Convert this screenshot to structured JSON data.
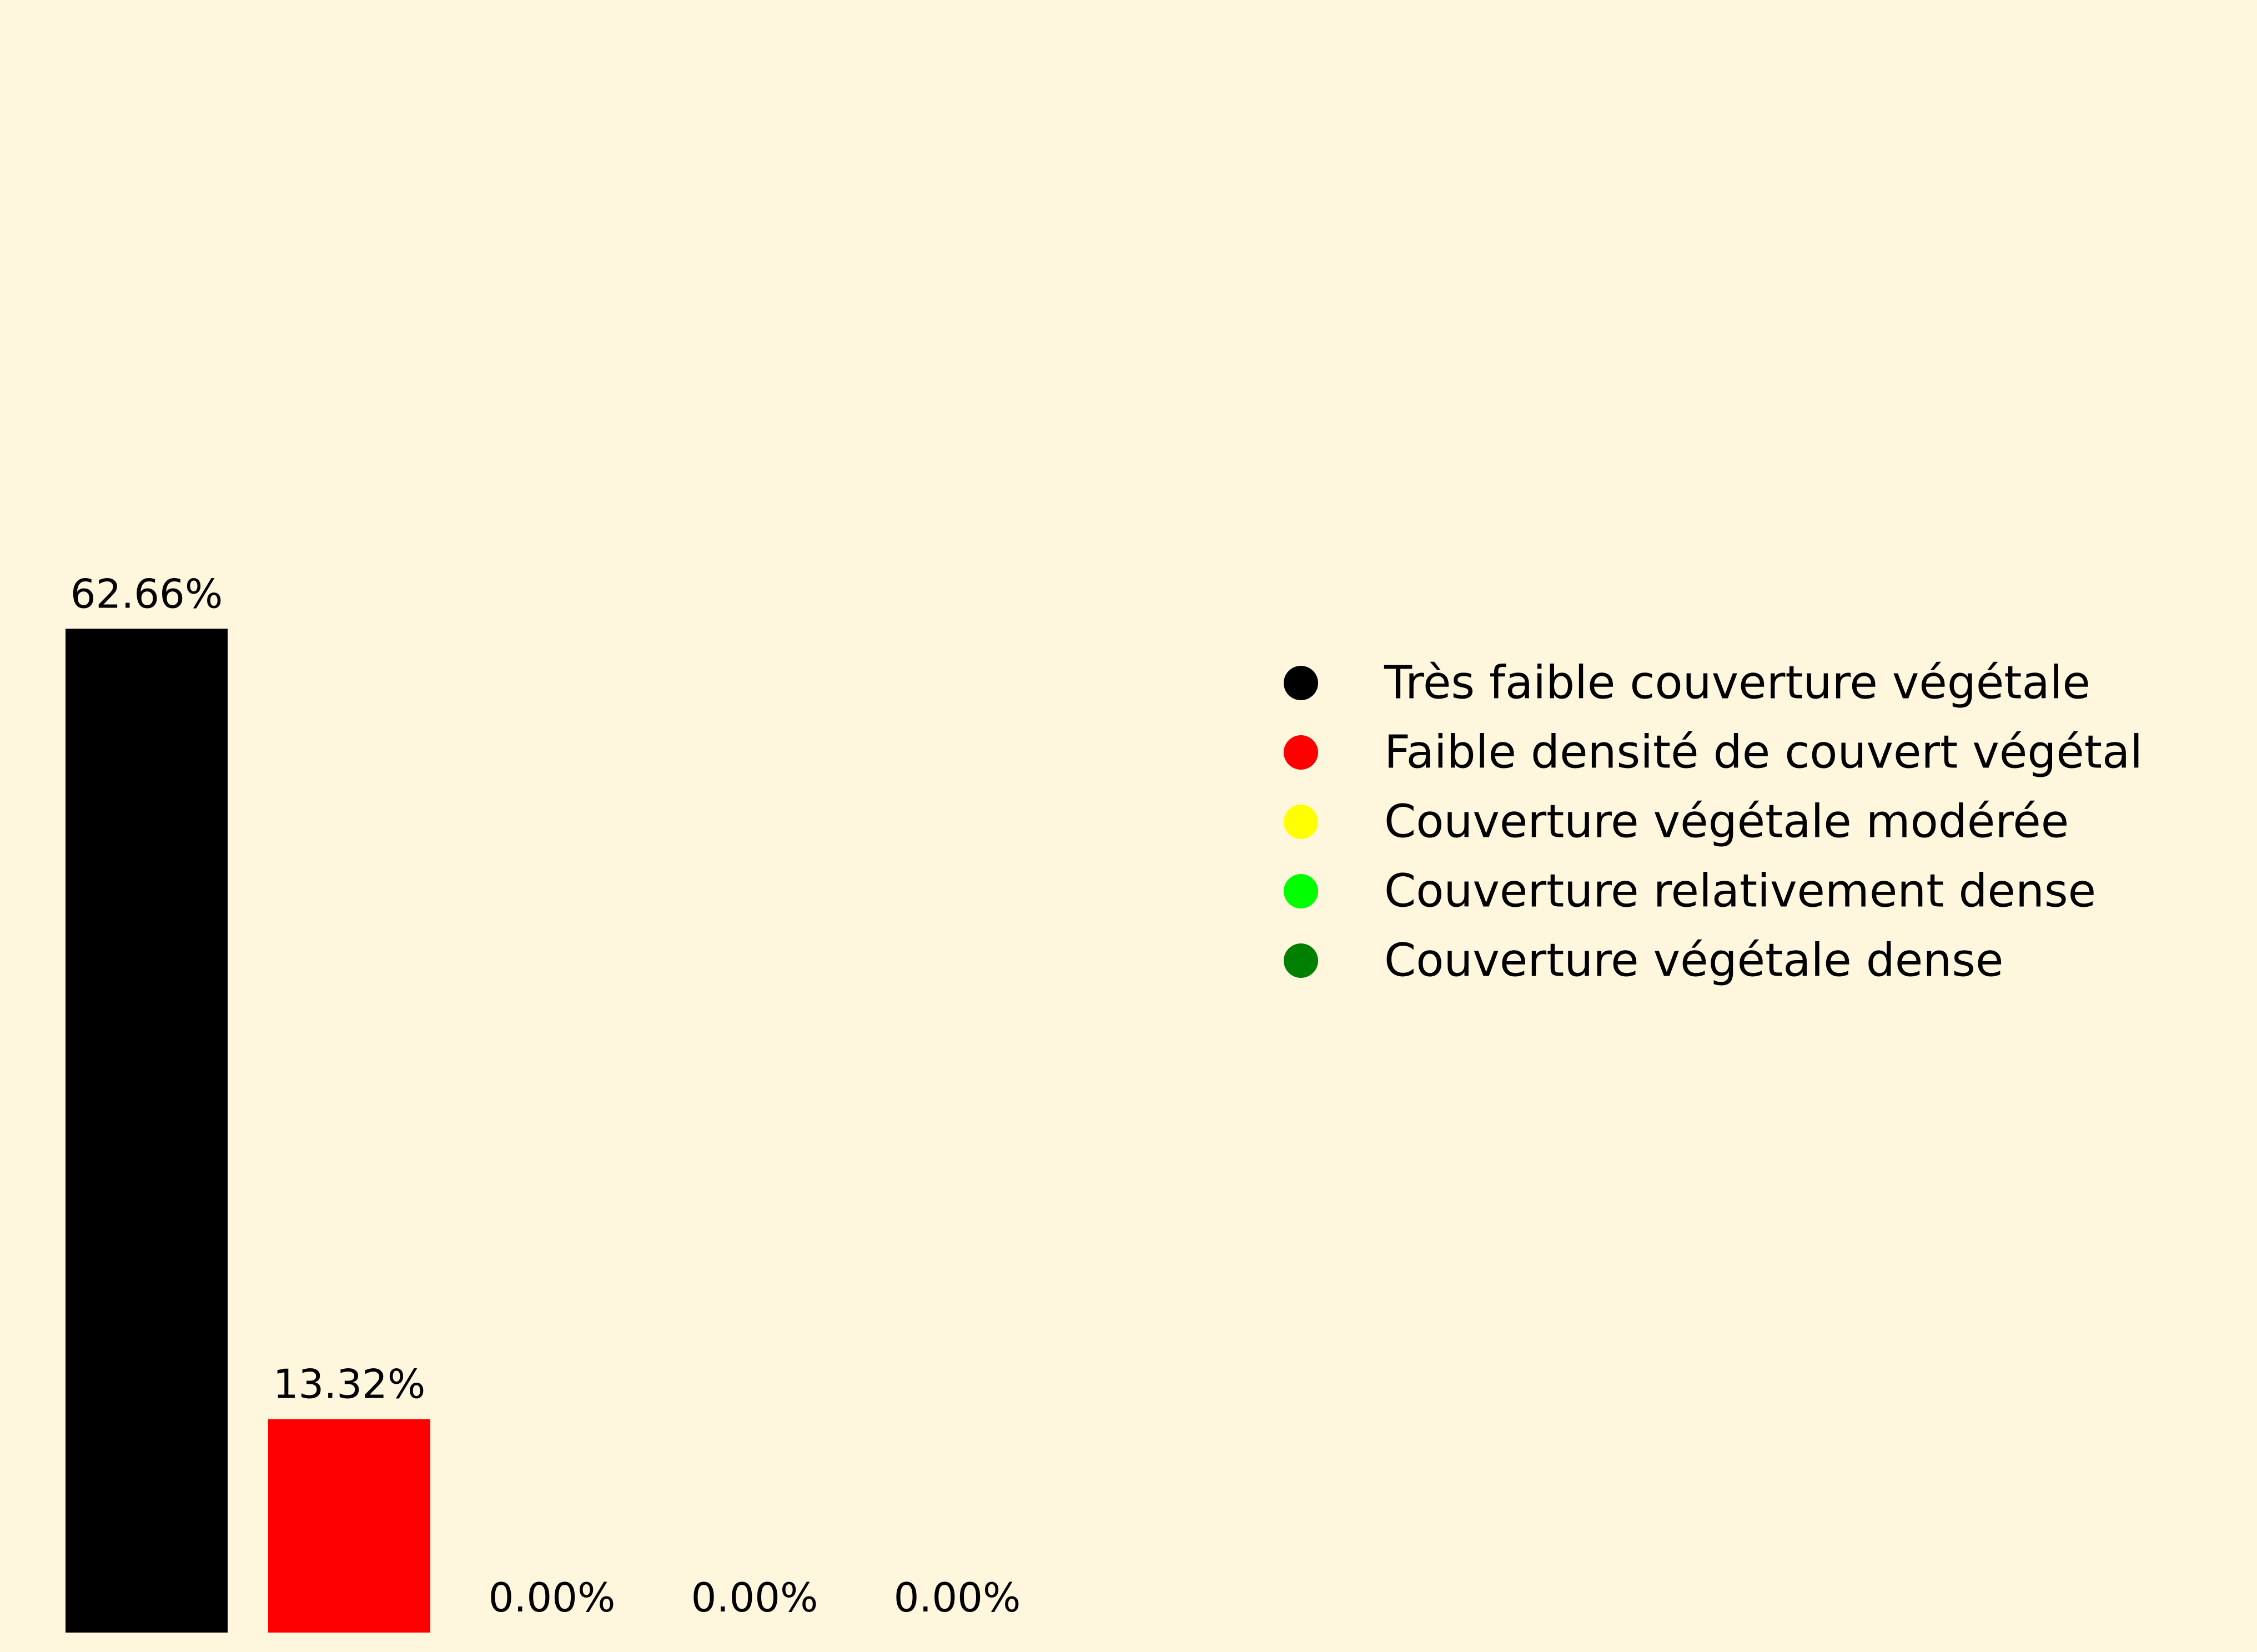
{
  "chart_data": {
    "type": "bar",
    "categories": [
      "Très faible couverture végétale",
      "Faible densité de couvert végétal",
      "Couverture végétale modérée",
      "Couverture relativement dense",
      "Couverture végétale dense"
    ],
    "values": [
      62.66,
      13.32,
      0.0,
      0.0,
      0.0
    ],
    "value_labels": [
      "62.66%",
      "13.32%",
      "0.00%",
      "0.00%",
      "0.00%"
    ],
    "colors": [
      "#000000",
      "#ff0000",
      "#ffff00",
      "#00ff00",
      "#008000"
    ],
    "ylim": [
      0,
      100
    ],
    "title": "",
    "xlabel": "",
    "ylabel": "",
    "grid": false,
    "axes_visible": false,
    "legend": {
      "placement": "right",
      "entries": [
        "Très faible couverture végétale",
        "Faible densité de couvert végétal",
        "Couverture végétale modérée",
        "Couverture relativement dense",
        "Couverture végétale dense"
      ]
    }
  },
  "background_color": "#fef7dd"
}
